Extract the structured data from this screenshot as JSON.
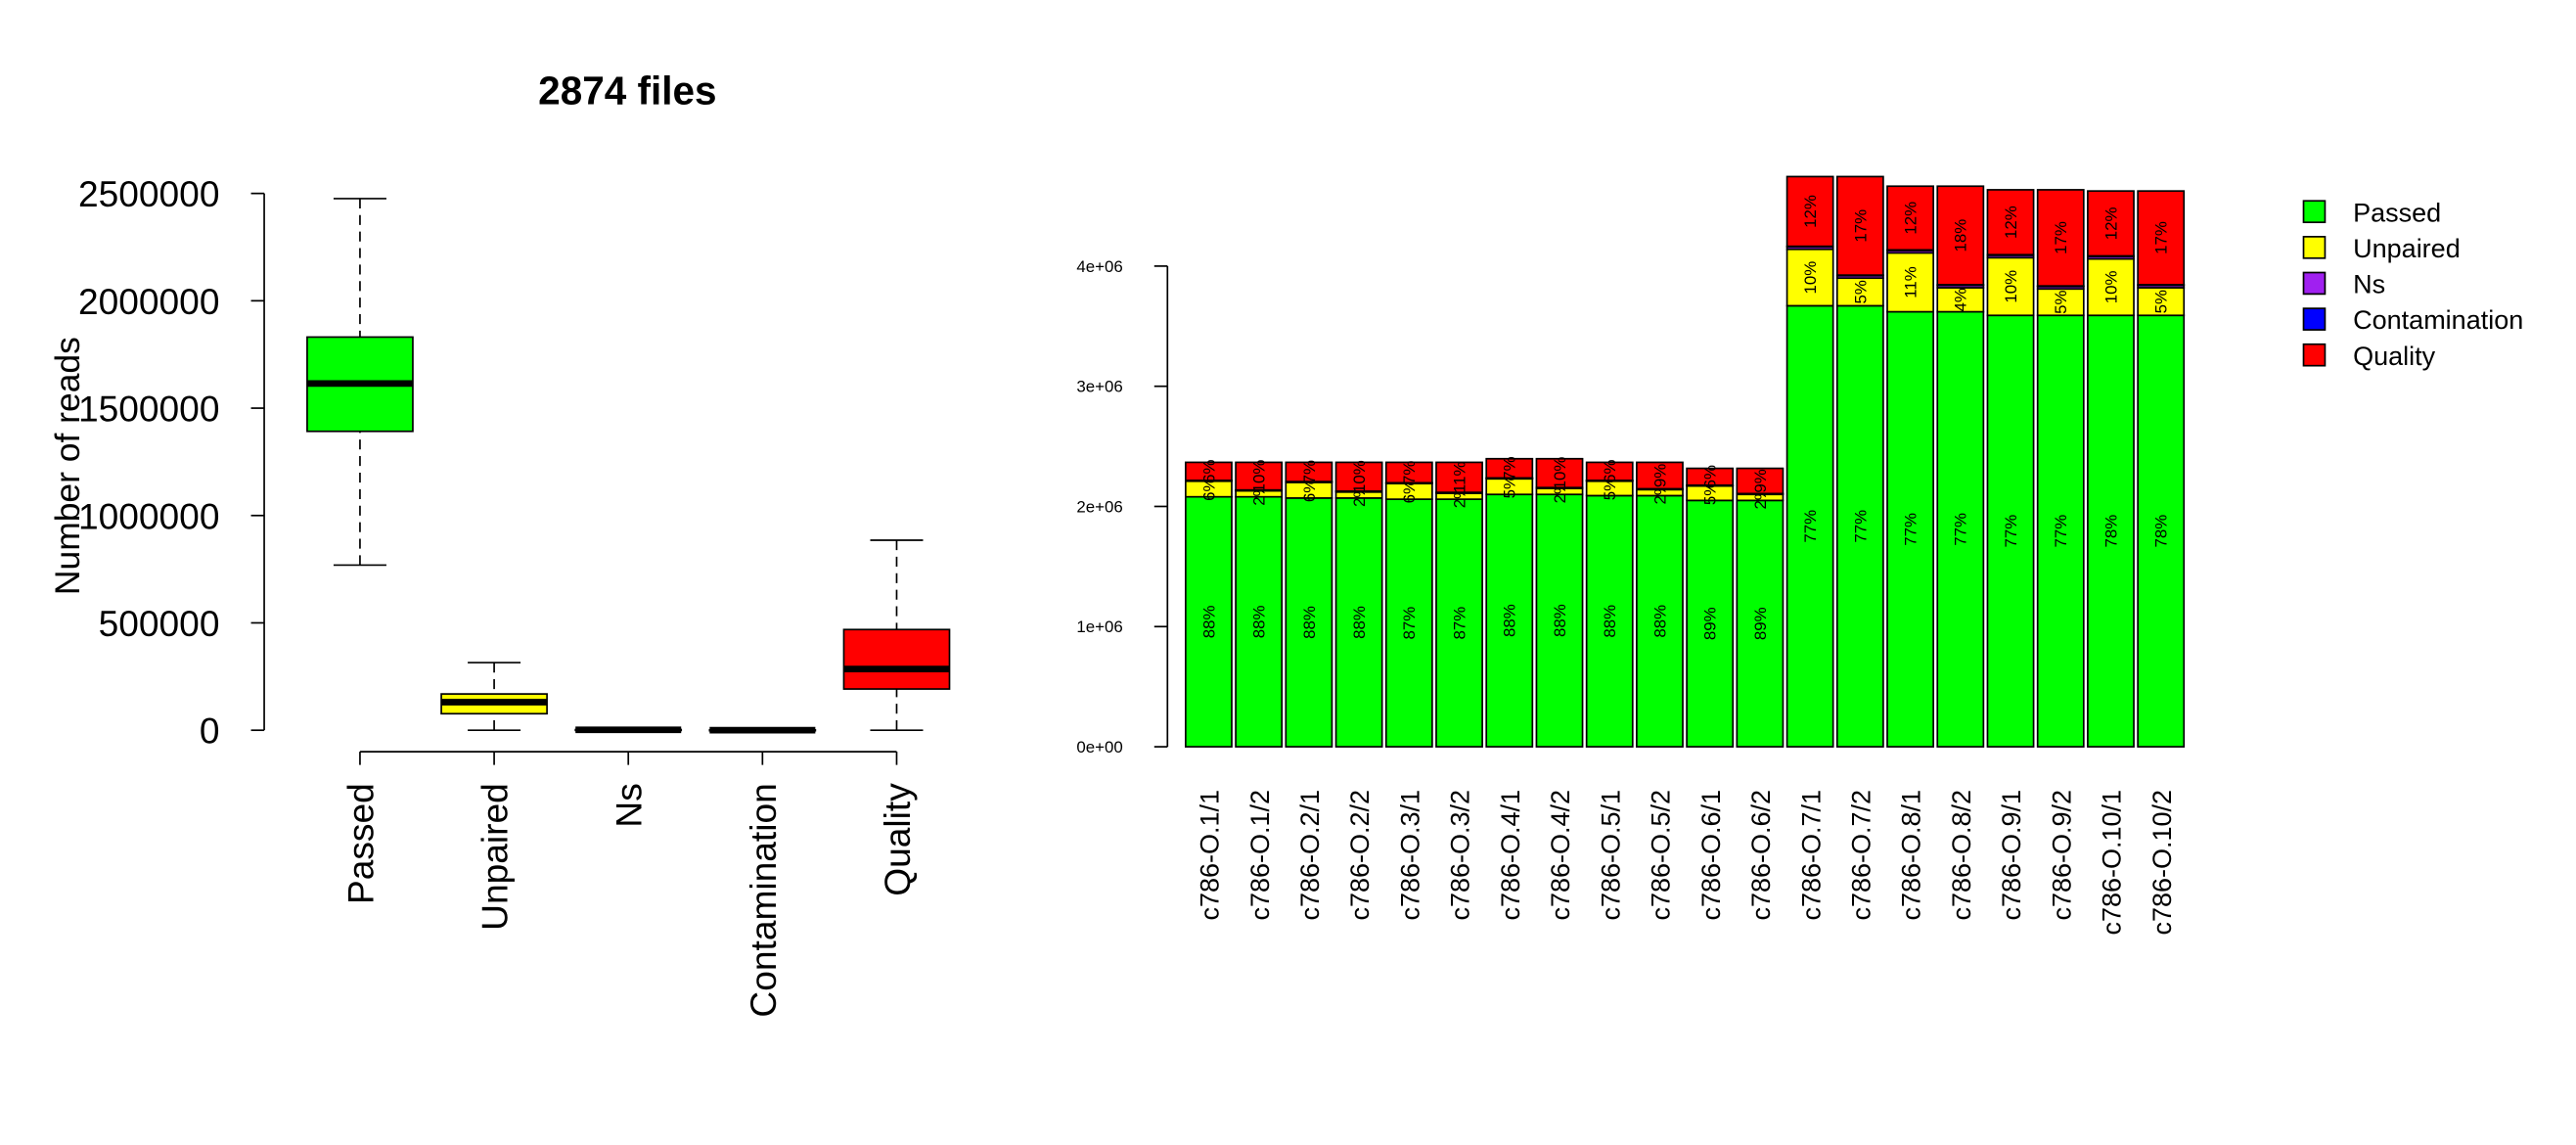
{
  "chart_data": [
    {
      "type": "box",
      "title": "2874 files",
      "y_label": "Number of reads",
      "categories": [
        "Passed",
        "Unpaired",
        "Ns",
        "Contamination",
        "Quality"
      ],
      "colors": [
        "#00ff00",
        "#ffff00",
        "#a020f0",
        "#0000ff",
        "#ff0000"
      ],
      "min": [
        769000,
        0,
        0,
        0,
        0
      ],
      "q1": [
        1392000,
        77000,
        1000,
        0,
        192000
      ],
      "median": [
        1615000,
        131000,
        2000,
        500,
        285000
      ],
      "q3": [
        1831000,
        169000,
        3000,
        1500,
        469000
      ],
      "max": [
        2476000,
        315000,
        5000,
        3000,
        885000
      ],
      "ylim": [
        0,
        2500000
      ],
      "yticks": [
        0,
        500000,
        1000000,
        1500000,
        2000000,
        2500000
      ]
    },
    {
      "type": "bar",
      "stacked": true,
      "legend": "right",
      "categories": [
        "c786-O.1/1",
        "c786-O.1/2",
        "c786-O.2/1",
        "c786-O.2/2",
        "c786-O.3/1",
        "c786-O.3/2",
        "c786-O.4/1",
        "c786-O.4/2",
        "c786-O.5/1",
        "c786-O.5/2",
        "c786-O.6/1",
        "c786-O.6/2",
        "c786-O.7/1",
        "c786-O.7/2",
        "c786-O.8/1",
        "c786-O.8/2",
        "c786-O.9/1",
        "c786-O.9/2",
        "c786-O.10/1",
        "c786-O.10/2"
      ],
      "series": [
        {
          "name": "Passed",
          "color": "#00ff00",
          "values": [
            2080000,
            2080000,
            2070000,
            2070000,
            2060000,
            2060000,
            2100000,
            2100000,
            2090000,
            2090000,
            2050000,
            2050000,
            3670000,
            3670000,
            3620000,
            3620000,
            3590000,
            3590000,
            3590000,
            3590000
          ],
          "percent_labels": [
            "88%",
            "88%",
            "88%",
            "88%",
            "87%",
            "87%",
            "88%",
            "88%",
            "88%",
            "88%",
            "89%",
            "89%",
            "77%",
            "77%",
            "77%",
            "77%",
            "77%",
            "77%",
            "78%",
            "78%"
          ]
        },
        {
          "name": "Unpaired",
          "color": "#ffff00",
          "values": [
            130000,
            50000,
            130000,
            50000,
            130000,
            50000,
            130000,
            50000,
            120000,
            50000,
            120000,
            50000,
            470000,
            230000,
            490000,
            200000,
            480000,
            220000,
            470000,
            230000
          ],
          "percent_labels": [
            "6%",
            "2%",
            "6%",
            "2%",
            "6%",
            "2%",
            "5%",
            "2%",
            "5%",
            "2%",
            "5%",
            "2%",
            "10%",
            "5%",
            "11%",
            "4%",
            "10%",
            "5%",
            "10%",
            "5%"
          ]
        },
        {
          "name": "Ns",
          "color": "#a020f0",
          "values": [
            5000,
            5000,
            5000,
            5000,
            5000,
            5000,
            5000,
            5000,
            5000,
            5000,
            5000,
            5000,
            20000,
            20000,
            20000,
            20000,
            20000,
            20000,
            20000,
            20000
          ]
        },
        {
          "name": "Contamination",
          "color": "#0000ff",
          "values": [
            2000,
            2000,
            2000,
            2000,
            2000,
            2000,
            2000,
            2000,
            2000,
            2000,
            2000,
            2000,
            5000,
            5000,
            5000,
            5000,
            5000,
            5000,
            5000,
            5000
          ]
        },
        {
          "name": "Quality",
          "color": "#ff0000",
          "values": [
            150000,
            230000,
            160000,
            240000,
            170000,
            250000,
            160000,
            240000,
            150000,
            220000,
            140000,
            210000,
            580000,
            820000,
            530000,
            820000,
            540000,
            800000,
            540000,
            780000
          ],
          "percent_labels": [
            "6%",
            "10%",
            "7%",
            "10%",
            "7%",
            "11%",
            "7%",
            "10%",
            "6%",
            "9%",
            "6%",
            "9%",
            "12%",
            "17%",
            "12%",
            "18%",
            "12%",
            "17%",
            "12%",
            "17%"
          ]
        }
      ],
      "ylim": [
        0,
        4800000
      ],
      "yticks": [
        {
          "value": 0,
          "label": "0e+00"
        },
        {
          "value": 1000000,
          "label": "1e+06"
        },
        {
          "value": 2000000,
          "label": "2e+06"
        },
        {
          "value": 3000000,
          "label": "3e+06"
        },
        {
          "value": 4000000,
          "label": "4e+06"
        }
      ]
    }
  ]
}
